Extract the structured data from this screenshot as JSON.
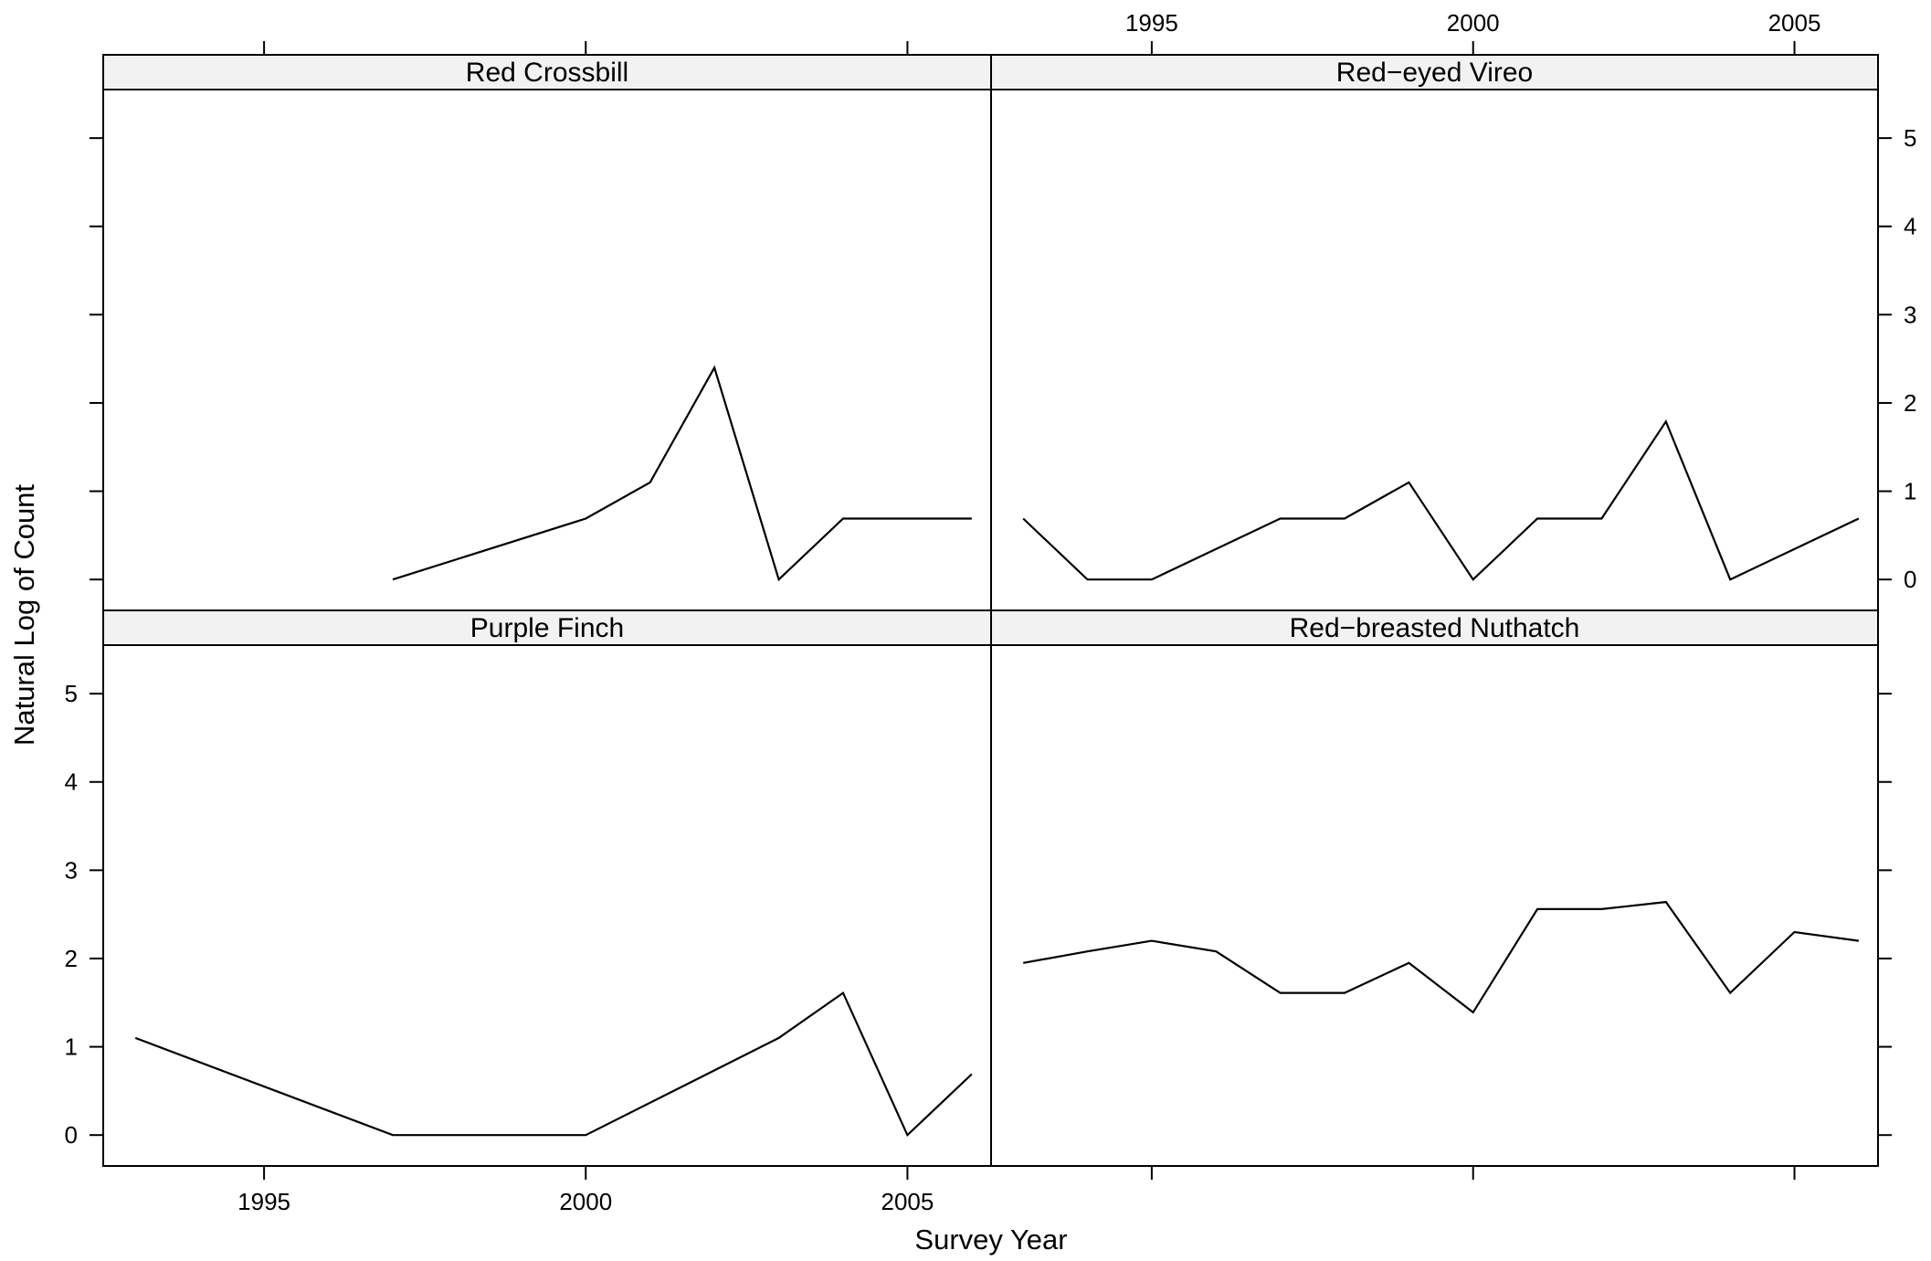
{
  "chart_data": {
    "type": "line",
    "layout": "2x2 trellis",
    "xlabel": "Survey Year",
    "ylabel": "Natural Log of Count",
    "xlim": [
      1992.5,
      2006.3
    ],
    "ylim": [
      -0.35,
      5.55
    ],
    "x_ticks": [
      1995,
      2000,
      2005
    ],
    "y_ticks": [
      0,
      1,
      2,
      3,
      4,
      5
    ],
    "grid": false,
    "legend": "none",
    "line_color": "#000000",
    "strip_color": "#f2f2f2",
    "panels": [
      {
        "name": "Red Crossbill",
        "x": [
          1997,
          2000,
          2001,
          2002,
          2003,
          2004,
          2005,
          2006
        ],
        "y": [
          0,
          0.69,
          1.1,
          2.4,
          0,
          0.69,
          0.69,
          0.69
        ]
      },
      {
        "name": "Red−eyed Vireo",
        "x": [
          1993,
          1994,
          1995,
          1997,
          1998,
          1999,
          2000,
          2001,
          2002,
          2003,
          2004,
          2006
        ],
        "y": [
          0.69,
          0,
          0,
          0.69,
          0.69,
          1.1,
          0,
          0.69,
          0.69,
          1.79,
          0,
          0.69
        ]
      },
      {
        "name": "Purple Finch",
        "x": [
          1993,
          1997,
          2000,
          2003,
          2004,
          2005,
          2006
        ],
        "y": [
          1.1,
          0,
          0,
          1.1,
          1.61,
          0,
          0.69
        ]
      },
      {
        "name": "Red−breasted Nuthatch",
        "x": [
          1993,
          1994,
          1995,
          1996,
          1997,
          1998,
          1999,
          2000,
          2001,
          2002,
          2003,
          2004,
          2005,
          2006
        ],
        "y": [
          1.95,
          2.08,
          2.2,
          2.08,
          1.61,
          1.61,
          1.95,
          1.39,
          2.56,
          2.56,
          2.64,
          1.61,
          2.3,
          2.2
        ]
      }
    ]
  }
}
